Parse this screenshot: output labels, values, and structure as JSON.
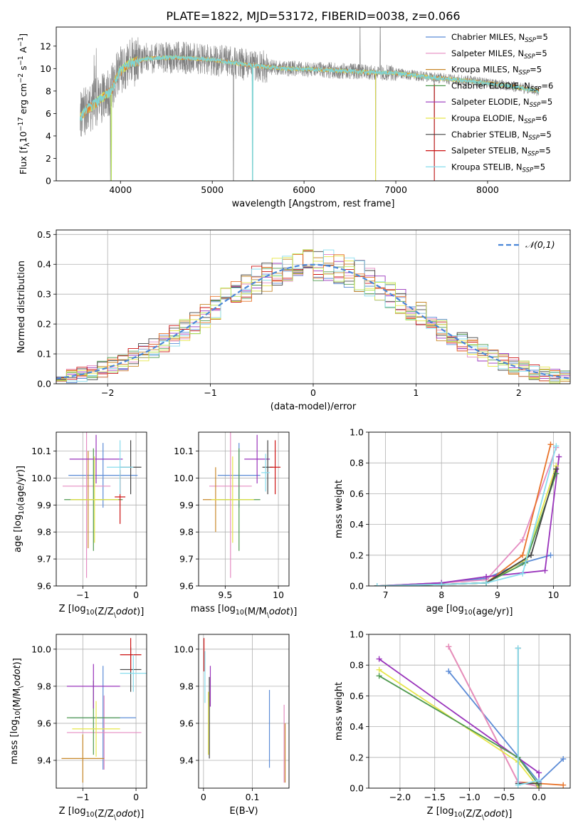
{
  "figure": {
    "title": "PLATE=1822, MJD=53172, FIBERID=0038, z=0.066"
  },
  "colors": {
    "Chabrier MILES": "#5b8bd6",
    "Salpeter MILES": "#e58cc2",
    "Kroupa MILES": "#c8882a",
    "Chabrier ELODIE": "#4f9a4f",
    "Salpeter ELODIE": "#9933bb",
    "Kroupa ELODIE": "#e6e64a",
    "Chabrier STELIB": "#444444",
    "Salpeter STELIB": "#cc1111",
    "Kroupa STELIB": "#88ddee",
    "data": "#808080",
    "model_fit": "#7fd3d3",
    "extra1": "#e8732a",
    "extra2": "#b8e65a"
  },
  "chart_data": [
    {
      "id": "spectrum",
      "type": "line",
      "xlabel": "wavelength [Angstrom, rest frame]",
      "ylabel": "Flux [f$_\\lambda$10$^{-17}$ erg cm$^{-2}$ s$^{-1}$ A$^{-1}$]",
      "ylabel_parts": [
        "Flux [f",
        "λ",
        "10",
        "−17",
        " erg cm",
        "−2",
        " s",
        "−1",
        " A",
        "−1",
        "]"
      ],
      "xlim": [
        3300,
        8900
      ],
      "ylim": [
        0,
        13.7
      ],
      "xticks": [
        4000,
        5000,
        6000,
        7000,
        8000
      ],
      "yticks": [
        0,
        2,
        4,
        6,
        8,
        10,
        12
      ],
      "legend": {
        "position": "top-right",
        "entries": [
          {
            "label": "Chabrier MILES, N",
            "sub": "SSP",
            "tail": "=5"
          },
          {
            "label": "Salpeter MILES, N",
            "sub": "SSP",
            "tail": "=5"
          },
          {
            "label": "Kroupa MILES, N",
            "sub": "SSP",
            "tail": "=5"
          },
          {
            "label": "Chabrier ELODIE, N",
            "sub": "SSP",
            "tail": "=6"
          },
          {
            "label": "Salpeter ELODIE, N",
            "sub": "SSP",
            "tail": "=5"
          },
          {
            "label": "Kroupa ELODIE, N",
            "sub": "SSP",
            "tail": "=6"
          },
          {
            "label": "Chabrier STELIB, N",
            "sub": "SSP",
            "tail": "=5"
          },
          {
            "label": "Salpeter STELIB, N",
            "sub": "SSP",
            "tail": "=5"
          },
          {
            "label": "Kroupa STELIB, N",
            "sub": "SSP",
            "tail": "=5"
          }
        ]
      },
      "continuum": [
        [
          3560,
          5.6
        ],
        [
          3620,
          6.3
        ],
        [
          3700,
          6.7
        ],
        [
          3800,
          7.4
        ],
        [
          3900,
          8.0
        ],
        [
          3980,
          9.6
        ],
        [
          4100,
          10.5
        ],
        [
          4300,
          10.9
        ],
        [
          4600,
          11.0
        ],
        [
          5000,
          10.8
        ],
        [
          5400,
          10.3
        ],
        [
          5800,
          10.0
        ],
        [
          6200,
          9.9
        ],
        [
          6600,
          9.7
        ],
        [
          7000,
          9.6
        ],
        [
          7400,
          9.2
        ],
        [
          7800,
          8.9
        ],
        [
          8200,
          8.5
        ],
        [
          8500,
          8.1
        ],
        [
          8560,
          8.0
        ]
      ],
      "data_range": [
        3560,
        8560
      ],
      "data_noise": 1.6,
      "data_dips": [
        [
          3890,
          0.0
        ],
        [
          5230,
          0.0
        ],
        [
          5440,
          0.0
        ],
        [
          6780,
          0.0
        ],
        [
          7420,
          0.0
        ]
      ],
      "data_spikes": [
        [
          6610,
          13.7
        ],
        [
          6830,
          13.7
        ]
      ]
    },
    {
      "id": "residuals",
      "type": "histogram",
      "xlabel": "(data-model)/error",
      "ylabel": "Normed distribution",
      "xlim": [
        -2.5,
        2.5
      ],
      "ylim": [
        0,
        0.515
      ],
      "xticks": [
        -2,
        -1,
        0,
        1,
        2
      ],
      "yticks": [
        0.0,
        0.1,
        0.2,
        0.3,
        0.4,
        0.5
      ],
      "grid": true,
      "legend": {
        "position": "top-right",
        "label": "𝒩(0,1)"
      },
      "bin_width": 0.1,
      "bins_start": -2.5,
      "series_amplitude": 0.05,
      "series_seeds": [
        1,
        2,
        3,
        4,
        5,
        6,
        7,
        8,
        9
      ]
    },
    {
      "id": "age_vs_Z",
      "type": "errorbar",
      "xlabel": "Z [log$_{10}$(Z/Z$_\\odot$)]",
      "ylabel": "age  [log$_{10}$(age/yr)]",
      "xlim": [
        -1.5,
        0.2
      ],
      "ylim": [
        9.6,
        10.17
      ],
      "xticks": [
        -1,
        0
      ],
      "yticks": [
        9.6,
        9.7,
        9.8,
        9.9,
        10.0,
        10.1
      ],
      "points": [
        {
          "color": "Chabrier MILES",
          "x": -0.62,
          "xerr": 0.65,
          "y": 10.01,
          "yerr": 0.12
        },
        {
          "color": "Salpeter MILES",
          "x": -0.93,
          "xerr": 0.45,
          "y": 9.97,
          "yerr": 0.34
        },
        {
          "color": "Kroupa MILES",
          "x": -0.9,
          "xerr": 0.32,
          "y": 9.92,
          "yerr": 0.18
        },
        {
          "color": "Chabrier ELODIE",
          "x": -0.8,
          "xerr": 0.55,
          "y": 9.92,
          "yerr": 0.19
        },
        {
          "color": "Salpeter ELODIE",
          "x": -0.75,
          "xerr": 0.5,
          "y": 10.07,
          "yerr": 0.09
        },
        {
          "color": "Kroupa ELODIE",
          "x": -0.78,
          "xerr": 0.45,
          "y": 9.92,
          "yerr": 0.16
        },
        {
          "color": "Chabrier STELIB",
          "x": -0.1,
          "xerr": 0.2,
          "y": 10.04,
          "yerr": 0.1
        },
        {
          "color": "Salpeter STELIB",
          "x": -0.3,
          "xerr": 0.1,
          "y": 9.93,
          "yerr": 0.1
        },
        {
          "color": "Kroupa STELIB",
          "x": -0.3,
          "xerr": 0.25,
          "y": 10.04,
          "yerr": 0.1
        }
      ]
    },
    {
      "id": "age_vs_mass",
      "type": "errorbar",
      "xlabel": "mass [log$_{10}$(M/M$_\\odot$)]",
      "ylabel": "",
      "xlim": [
        9.25,
        10.1
      ],
      "ylim": [
        9.6,
        10.17
      ],
      "xticks": [
        9.5,
        10.0
      ],
      "yticks": [
        9.6,
        9.7,
        9.8,
        9.9,
        10.0,
        10.1
      ],
      "points": [
        {
          "color": "Chabrier MILES",
          "x": 9.63,
          "xerr": 0.2,
          "y": 10.01,
          "yerr": 0.12
        },
        {
          "color": "Salpeter MILES",
          "x": 9.55,
          "xerr": 0.2,
          "y": 9.97,
          "yerr": 0.34
        },
        {
          "color": "Kroupa MILES",
          "x": 9.41,
          "xerr": 0.12,
          "y": 9.92,
          "yerr": 0.12
        },
        {
          "color": "Chabrier ELODIE",
          "x": 9.63,
          "xerr": 0.2,
          "y": 9.92,
          "yerr": 0.19
        },
        {
          "color": "Salpeter ELODIE",
          "x": 9.8,
          "xerr": 0.12,
          "y": 10.07,
          "yerr": 0.09
        },
        {
          "color": "Kroupa ELODIE",
          "x": 9.57,
          "xerr": 0.2,
          "y": 9.92,
          "yerr": 0.16
        },
        {
          "color": "Chabrier STELIB",
          "x": 9.9,
          "xerr": 0.05,
          "y": 10.04,
          "yerr": 0.1
        },
        {
          "color": "Salpeter STELIB",
          "x": 9.97,
          "xerr": 0.05,
          "y": 10.04,
          "yerr": 0.1
        },
        {
          "color": "Kroupa STELIB",
          "x": 9.88,
          "xerr": 0.04,
          "y": 10.02,
          "yerr": 0.07
        }
      ]
    },
    {
      "id": "mass_weight_vs_age",
      "type": "line",
      "xlabel": "age  [log$_{10}$(age/yr)]",
      "ylabel": "mass weight",
      "xlim": [
        6.7,
        10.3
      ],
      "ylim": [
        0,
        1.0
      ],
      "xticks": [
        7,
        8,
        9,
        10
      ],
      "yticks": [
        0.0,
        0.2,
        0.4,
        0.6,
        0.8,
        1.0
      ],
      "series": [
        {
          "color": "Chabrier MILES",
          "x": [
            6.85,
            8.0,
            8.8,
            9.45,
            9.95
          ],
          "y": [
            0.0,
            0.02,
            0.05,
            0.15,
            0.2
          ]
        },
        {
          "color": "Salpeter MILES",
          "x": [
            6.85,
            8.0,
            8.8,
            9.45,
            10.05
          ],
          "y": [
            0.0,
            0.02,
            0.04,
            0.3,
            0.9
          ]
        },
        {
          "color": "extra1",
          "x": [
            6.85,
            8.0,
            8.8,
            9.45,
            9.95
          ],
          "y": [
            0.0,
            0.01,
            0.02,
            0.2,
            0.92
          ]
        },
        {
          "color": "Salpeter ELODIE",
          "x": [
            6.85,
            8.0,
            8.8,
            9.85,
            10.1
          ],
          "y": [
            0.0,
            0.02,
            0.06,
            0.1,
            0.84
          ]
        },
        {
          "color": "Kroupa ELODIE",
          "x": [
            6.85,
            8.0,
            8.8,
            9.5,
            10.05
          ],
          "y": [
            0.0,
            0.01,
            0.02,
            0.17,
            0.78
          ]
        },
        {
          "color": "Chabrier ELODIE",
          "x": [
            6.85,
            8.0,
            8.8,
            9.5,
            10.05
          ],
          "y": [
            0.0,
            0.01,
            0.02,
            0.15,
            0.73
          ]
        },
        {
          "color": "Chabrier STELIB",
          "x": [
            6.85,
            8.0,
            8.8,
            9.6,
            10.05
          ],
          "y": [
            0.0,
            0.01,
            0.02,
            0.2,
            0.76
          ]
        },
        {
          "color": "Kroupa STELIB",
          "x": [
            6.85,
            8.0,
            8.8,
            9.45,
            10.05
          ],
          "y": [
            0.0,
            0.01,
            0.02,
            0.08,
            0.91
          ]
        }
      ]
    },
    {
      "id": "mass_vs_Z",
      "type": "errorbar",
      "xlabel": "Z [log$_{10}$(Z/Z$_\\odot$)]",
      "ylabel": "mass [log$_{10}$(M/M$_\\odot$)]",
      "xlim": [
        -1.5,
        0.2
      ],
      "ylim": [
        9.25,
        10.08
      ],
      "xticks": [
        -1,
        0
      ],
      "yticks": [
        9.4,
        9.6,
        9.8,
        10.0
      ],
      "points": [
        {
          "color": "Chabrier MILES",
          "x": -0.62,
          "xerr": 0.62,
          "y": 9.63,
          "yerr": 0.28
        },
        {
          "color": "Salpeter MILES",
          "x": -0.6,
          "xerr": 0.7,
          "y": 9.55,
          "yerr": 0.2
        },
        {
          "color": "Kroupa MILES",
          "x": -1.0,
          "xerr": 0.4,
          "y": 9.41,
          "yerr": 0.13
        },
        {
          "color": "Chabrier ELODIE",
          "x": -0.8,
          "xerr": 0.5,
          "y": 9.63,
          "yerr": 0.2
        },
        {
          "color": "Salpeter ELODIE",
          "x": -0.8,
          "xerr": 0.5,
          "y": 9.8,
          "yerr": 0.12
        },
        {
          "color": "Kroupa ELODIE",
          "x": -0.75,
          "xerr": 0.45,
          "y": 9.57,
          "yerr": 0.15
        },
        {
          "color": "Chabrier STELIB",
          "x": -0.1,
          "xerr": 0.2,
          "y": 9.89,
          "yerr": 0.12
        },
        {
          "color": "Salpeter STELIB",
          "x": -0.1,
          "xerr": 0.2,
          "y": 9.97,
          "yerr": 0.09
        },
        {
          "color": "Kroupa STELIB",
          "x": -0.05,
          "xerr": 0.25,
          "y": 9.87,
          "yerr": 0.1
        }
      ]
    },
    {
      "id": "mass_vs_ebv",
      "type": "errorbar",
      "xlabel": "E(B-V)",
      "ylabel": "",
      "xlim": [
        -0.01,
        0.175
      ],
      "ylim": [
        9.25,
        10.08
      ],
      "xticks": [
        0.0,
        0.1
      ],
      "yticks": [
        9.4,
        9.6,
        9.8,
        10.0
      ],
      "points": [
        {
          "color": "Chabrier MILES",
          "x": 0.135,
          "y": 9.57,
          "yerr": 0.21
        },
        {
          "color": "Salpeter MILES",
          "x": 0.165,
          "y": 9.49,
          "yerr": 0.21
        },
        {
          "color": "Kroupa MILES",
          "x": 0.167,
          "y": 9.44,
          "yerr": 0.16
        },
        {
          "color": "Salpeter ELODIE",
          "x": 0.014,
          "y": 9.8,
          "yerr": 0.11
        },
        {
          "color": "Kroupa ELODIE",
          "x": 0.01,
          "y": 9.6,
          "yerr": 0.17
        },
        {
          "color": "Chabrier STELIB",
          "x": 0.012,
          "y": 9.63,
          "yerr": 0.22
        },
        {
          "color": "Salpeter STELIB",
          "x": 0.001,
          "y": 9.97,
          "yerr": 0.09
        },
        {
          "color": "Kroupa STELIB",
          "x": 0.003,
          "y": 9.85,
          "yerr": 0.14
        }
      ]
    },
    {
      "id": "mass_weight_vs_Z",
      "type": "line",
      "xlabel": "Z [log$_{10}$(Z/Z$_\\odot$)]",
      "ylabel": "mass weight",
      "xlim": [
        -2.45,
        0.45
      ],
      "ylim": [
        0,
        1.0
      ],
      "xticks": [
        -2.0,
        -1.5,
        -1.0,
        -0.5,
        0.0
      ],
      "yticks": [
        0.0,
        0.2,
        0.4,
        0.6,
        0.8,
        1.0
      ],
      "series": [
        {
          "color": "Chabrier MILES",
          "x": [
            -1.3,
            0.0,
            0.35
          ],
          "y": [
            0.76,
            0.04,
            0.19
          ]
        },
        {
          "color": "extra1",
          "x": [
            -1.3,
            -0.3,
            0.35
          ],
          "y": [
            0.92,
            0.04,
            0.02
          ]
        },
        {
          "color": "Salpeter MILES",
          "x": [
            -1.3,
            -0.3,
            0.0
          ],
          "y": [
            0.92,
            0.04,
            0.01
          ]
        },
        {
          "color": "Salpeter ELODIE",
          "x": [
            -2.3,
            0.0,
            0.0
          ],
          "y": [
            0.84,
            0.1,
            0.0
          ]
        },
        {
          "color": "Kroupa ELODIE",
          "x": [
            -2.3,
            -0.3,
            0.0
          ],
          "y": [
            0.77,
            0.17,
            0.0
          ]
        },
        {
          "color": "Chabrier ELODIE",
          "x": [
            -2.3,
            -0.3,
            0.0
          ],
          "y": [
            0.73,
            0.2,
            0.02
          ]
        },
        {
          "color": "Chabrier STELIB",
          "x": [
            -0.3,
            -0.3,
            0.0
          ],
          "y": [
            0.91,
            0.03,
            0.03
          ]
        },
        {
          "color": "Kroupa STELIB",
          "x": [
            -0.3,
            -0.3,
            0.0
          ],
          "y": [
            0.91,
            0.02,
            0.05
          ]
        }
      ]
    }
  ]
}
